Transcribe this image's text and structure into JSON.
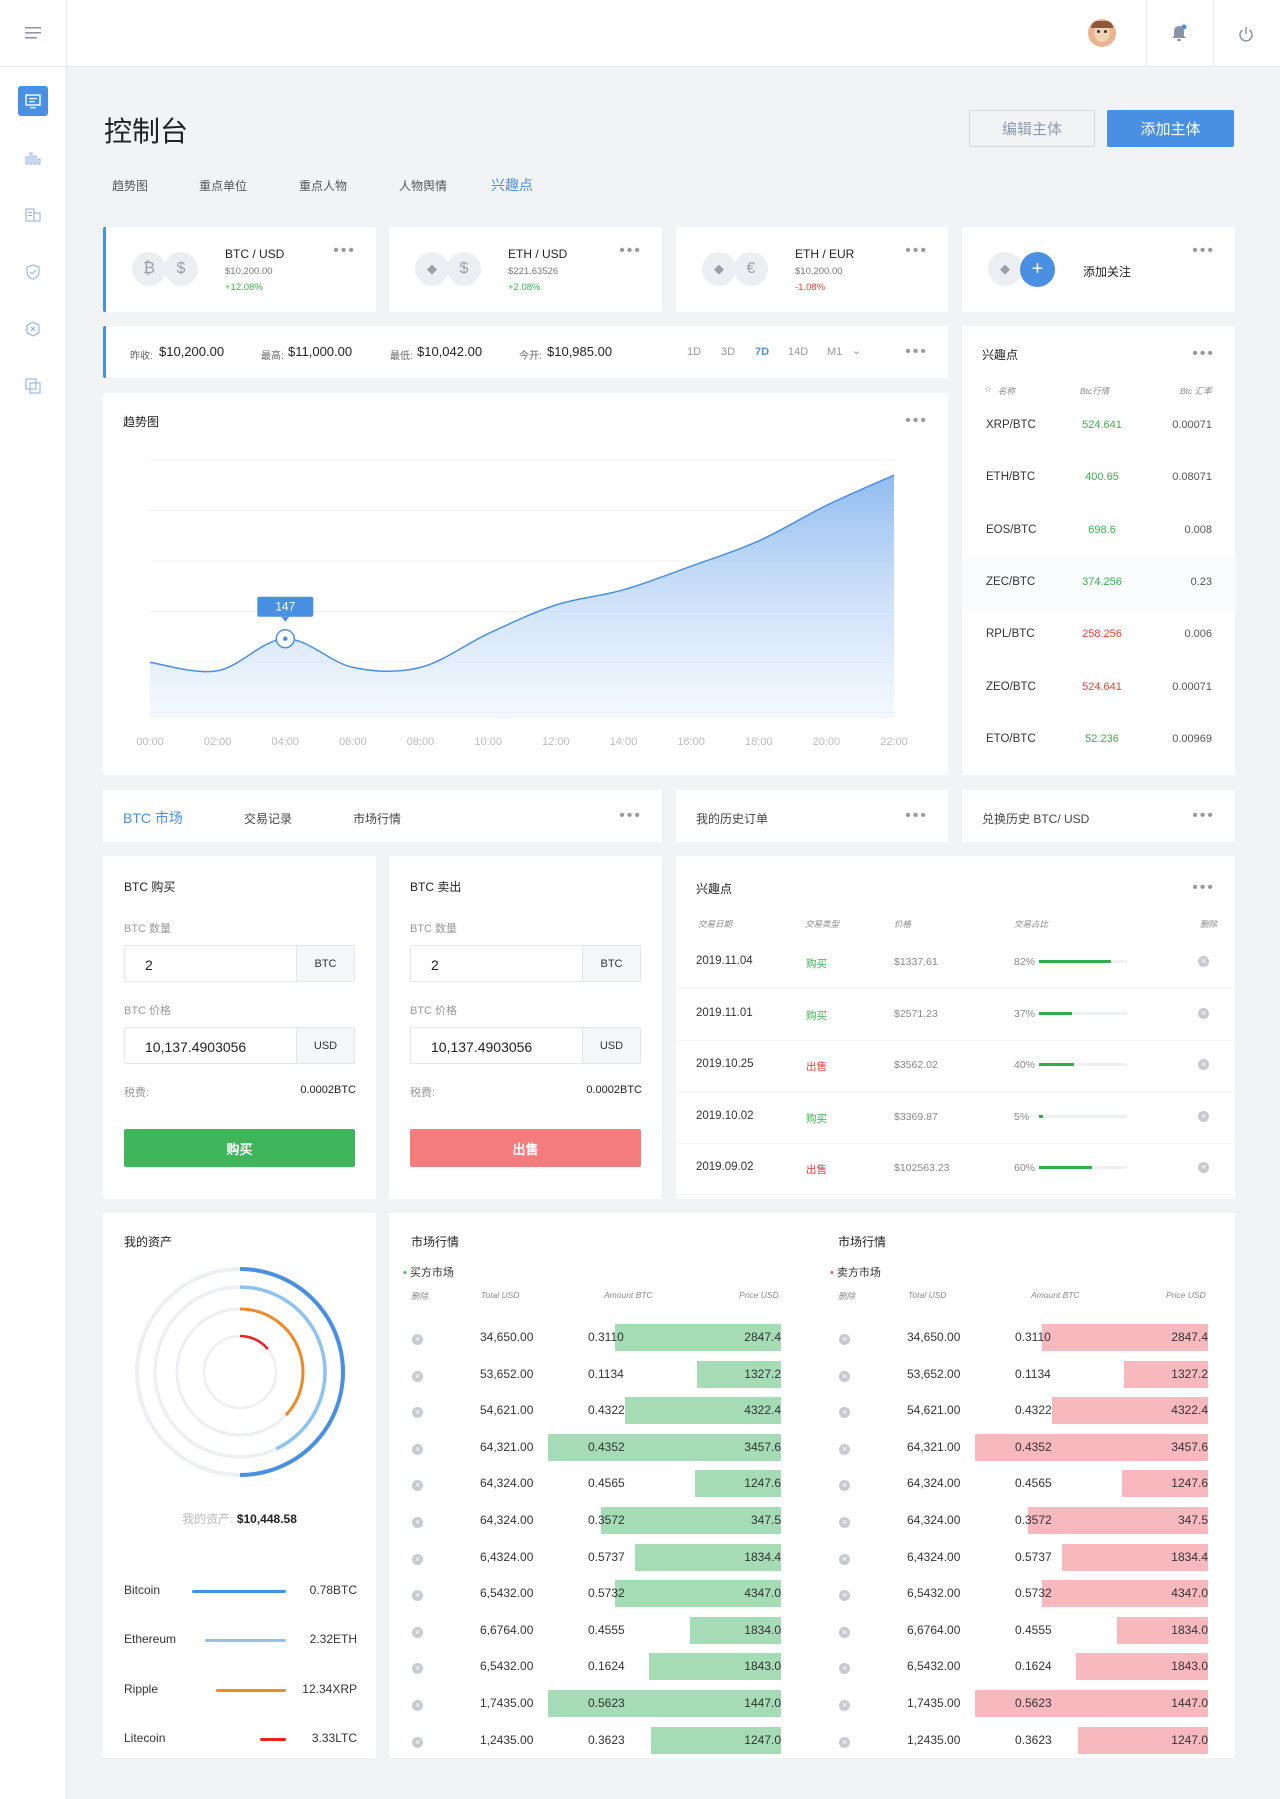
{
  "page_title": "控制台",
  "buttons": {
    "edit": "编辑主体",
    "add": "添加主体",
    "buy": "购买",
    "sell": "出售"
  },
  "tabs": [
    "趋势图",
    "重点单位",
    "重点人物",
    "人物舆情",
    "兴趣点"
  ],
  "tickers": [
    {
      "pair": "BTC / USD",
      "price": "$10,200.00",
      "change": "+12.08%",
      "dir": "up",
      "icons": [
        "bitcoin-icon",
        "dollar-icon"
      ],
      "g": [
        "₿",
        "$"
      ]
    },
    {
      "pair": "ETH / USD",
      "price": "$221.63526",
      "change": "+2.08%",
      "dir": "up",
      "icons": [
        "ethereum-icon",
        "dollar-icon"
      ],
      "g": [
        "◆",
        "$"
      ]
    },
    {
      "pair": "ETH / EUR",
      "price": "$10,200.00",
      "change": "-1.08%",
      "dir": "down",
      "icons": [
        "ethereum-icon",
        "euro-icon"
      ],
      "g": [
        "◆",
        "€"
      ]
    }
  ],
  "add_watch": "添加关注",
  "stats": [
    {
      "label": "昨收:",
      "value": "$10,200.00"
    },
    {
      "label": "最高:",
      "value": "$11,000.00"
    },
    {
      "label": "最低:",
      "value": "$10,042.00"
    },
    {
      "label": "今开:",
      "value": "$10,985.00"
    }
  ],
  "ranges": [
    "1D",
    "3D",
    "7D",
    "14D",
    "M1"
  ],
  "active_range": "7D",
  "trend_title": "趋势图",
  "chart_data": {
    "type": "area",
    "title": "趋势图",
    "x": [
      "00:00",
      "02:00",
      "04:00",
      "06:00",
      "08:00",
      "10:00",
      "12:00",
      "14:00",
      "16:00",
      "18:00",
      "20:00",
      "22:00"
    ],
    "values": [
      133,
      128,
      147,
      130,
      130,
      150,
      167,
      176,
      190,
      205,
      226,
      244
    ],
    "highlight": {
      "x": "04:00",
      "value": 147
    },
    "ylim": [
      100,
      250
    ],
    "grid": true,
    "color": "#4a90e2"
  },
  "watchlist": {
    "title": "兴趣点",
    "headers": [
      "名称",
      "Btc行情",
      "Btc 汇率"
    ],
    "rows": [
      {
        "pair": "XRP/BTC",
        "price": "524.641",
        "rate": "0.00071",
        "dir": "up"
      },
      {
        "pair": "ETH/BTC",
        "price": "400.65",
        "rate": "0.08071",
        "dir": "up"
      },
      {
        "pair": "EOS/BTC",
        "price": "698.6",
        "rate": "0.008",
        "dir": "up"
      },
      {
        "pair": "ZEC/BTC",
        "price": "374.256",
        "rate": "0.23",
        "dir": "up"
      },
      {
        "pair": "RPL/BTC",
        "price": "258.256",
        "rate": "0.006",
        "dir": "down"
      },
      {
        "pair": "ZEO/BTC",
        "price": "524.641",
        "rate": "0.00071",
        "dir": "down"
      },
      {
        "pair": "ETO/BTC",
        "price": "52.236",
        "rate": "0.00969",
        "dir": "up"
      }
    ]
  },
  "market_tabs": [
    "BTC 市场",
    "交易记录",
    "市场行情"
  ],
  "history_title": "我的历史订单",
  "exchange_title": "兑换历史 BTC/ USD",
  "buy_panel": {
    "title": "BTC 购买",
    "qty_label": "BTC 数量",
    "qty": "2",
    "qty_unit": "BTC",
    "price_label": "BTC 价格",
    "price": "10,137.4903056",
    "price_unit": "USD",
    "fee_label": "税费:",
    "fee": "0.0002BTC"
  },
  "sell_panel": {
    "title": "BTC 卖出",
    "qty_label": "BTC 数量",
    "qty": "2",
    "qty_unit": "BTC",
    "price_label": "BTC 价格",
    "price": "10,137.4903056",
    "price_unit": "USD",
    "fee_label": "税费:",
    "fee": "0.0002BTC"
  },
  "orders": {
    "title": "兴趣点",
    "headers": [
      "交易日期",
      "交易类型",
      "价格",
      "交易占比",
      "删除"
    ],
    "rows": [
      {
        "date": "2019.11.04",
        "type": "购买",
        "dir": "up",
        "price": "$1337.61",
        "pct": "82%",
        "frac": 0.82
      },
      {
        "date": "2019.11.01",
        "type": "购买",
        "dir": "up",
        "price": "$2571.23",
        "pct": "37%",
        "frac": 0.37
      },
      {
        "date": "2019.10.25",
        "type": "出售",
        "dir": "down",
        "price": "$3562.02",
        "pct": "40%",
        "frac": 0.4
      },
      {
        "date": "2019.10.02",
        "type": "购买",
        "dir": "up",
        "price": "$3369.87",
        "pct": "5%",
        "frac": 0.05
      },
      {
        "date": "2019.09.02",
        "type": "出售",
        "dir": "down",
        "price": "$102563.23",
        "pct": "60%",
        "frac": 0.6
      }
    ]
  },
  "assets": {
    "title": "我的资产",
    "total_label": "我的资产:",
    "total": "$10,448.58",
    "items": [
      {
        "name": "Bitcoin",
        "amount": "0.78BTC",
        "color": "#4a90e2",
        "frac": 0.5
      },
      {
        "name": "Ethereum",
        "amount": "2.32ETH",
        "color": "#8dc3f2",
        "frac": 0.43
      },
      {
        "name": "Ripple",
        "amount": "12.34XRP",
        "color": "#f08a24",
        "frac": 0.37
      },
      {
        "name": "Litecoin",
        "amount": "3.33LTC",
        "color": "#f02020",
        "frac": 0.14
      }
    ]
  },
  "market": {
    "title": "市场行情",
    "buy_label": "买方市场",
    "sell_label": "卖方市场",
    "headers": [
      "删除",
      "Total USD",
      "Amount BTC",
      "Price USD"
    ],
    "buy_rows": [
      {
        "total": "34,650.00",
        "amount": "0.3110",
        "price": "2847.4",
        "depth": 0.69
      },
      {
        "total": "53,652.00",
        "amount": "0.1134",
        "price": "1327.2",
        "depth": 0.35
      },
      {
        "total": "54,621.00",
        "amount": "0.4322",
        "price": "4322.4",
        "depth": 0.65
      },
      {
        "total": "64,321.00",
        "amount": "0.4352",
        "price": "3457.6",
        "depth": 0.97
      },
      {
        "total": "64,324.00",
        "amount": "0.4565",
        "price": "1247.6",
        "depth": 0.36
      },
      {
        "total": "64,324.00",
        "amount": "0.3572",
        "price": "347.5",
        "depth": 0.75
      },
      {
        "total": "6,4324.00",
        "amount": "0.5737",
        "price": "1834.4",
        "depth": 0.61
      },
      {
        "total": "6,5432.00",
        "amount": "0.5732",
        "price": "4347.0",
        "depth": 0.69
      },
      {
        "total": "6,6764.00",
        "amount": "0.4555",
        "price": "1834.0",
        "depth": 0.38
      },
      {
        "total": "6,5432.00",
        "amount": "0.1624",
        "price": "1843.0",
        "depth": 0.55
      },
      {
        "total": "1,7435.00",
        "amount": "0.5623",
        "price": "1447.0",
        "depth": 0.97
      },
      {
        "total": "1,2435.00",
        "amount": "0.3623",
        "price": "1247.0",
        "depth": 0.54
      }
    ],
    "sell_rows": [
      {
        "total": "34,650.00",
        "amount": "0.3110",
        "price": "2847.4",
        "depth": 0.69
      },
      {
        "total": "53,652.00",
        "amount": "0.1134",
        "price": "1327.2",
        "depth": 0.35
      },
      {
        "total": "54,621.00",
        "amount": "0.4322",
        "price": "4322.4",
        "depth": 0.65
      },
      {
        "total": "64,321.00",
        "amount": "0.4352",
        "price": "3457.6",
        "depth": 0.97
      },
      {
        "total": "64,324.00",
        "amount": "0.4565",
        "price": "1247.6",
        "depth": 0.36
      },
      {
        "total": "64,324.00",
        "amount": "0.3572",
        "price": "347.5",
        "depth": 0.75
      },
      {
        "total": "6,4324.00",
        "amount": "0.5737",
        "price": "1834.4",
        "depth": 0.61
      },
      {
        "total": "6,5432.00",
        "amount": "0.5732",
        "price": "4347.0",
        "depth": 0.69
      },
      {
        "total": "6,6764.00",
        "amount": "0.4555",
        "price": "1834.0",
        "depth": 0.38
      },
      {
        "total": "6,5432.00",
        "amount": "0.1624",
        "price": "1843.0",
        "depth": 0.55
      },
      {
        "total": "1,7435.00",
        "amount": "0.5623",
        "price": "1447.0",
        "depth": 0.97
      },
      {
        "total": "1,2435.00",
        "amount": "0.3623",
        "price": "1247.0",
        "depth": 0.54
      }
    ]
  }
}
